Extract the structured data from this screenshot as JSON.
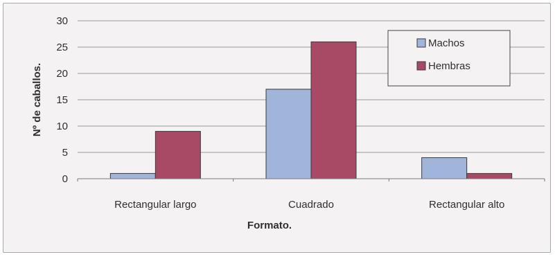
{
  "chart_data": {
    "type": "bar",
    "categories": [
      "Rectangular largo",
      "Cuadrado",
      "Rectangular alto"
    ],
    "series": [
      {
        "name": "Machos",
        "values": [
          1,
          17,
          4
        ],
        "color": "#9fb6da"
      },
      {
        "name": "Hembras",
        "values": [
          9,
          26,
          1
        ],
        "color": "#a84a66"
      }
    ],
    "xlabel": "Formato.",
    "ylabel": "Nº de caballos.",
    "ylim": [
      0,
      30
    ],
    "yticks": [
      0,
      5,
      10,
      15,
      20,
      25,
      30
    ],
    "grid": true,
    "legend_position": "top-right"
  }
}
